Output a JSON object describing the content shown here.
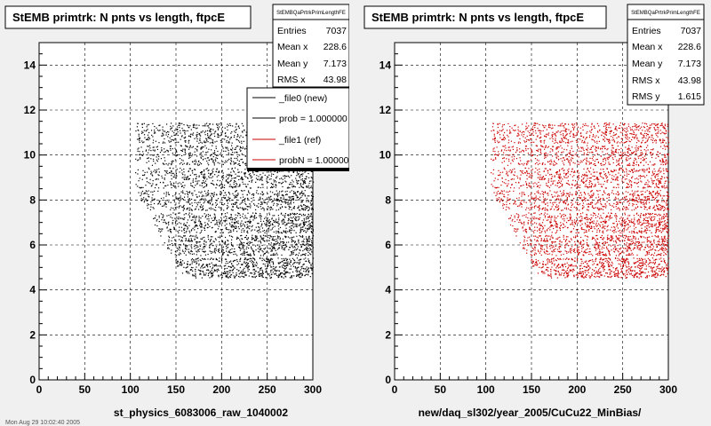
{
  "canvas_bg": "#f0f0f0",
  "footer_text": "Mon Aug 29 10:02:40 2005",
  "chart_data": [
    {
      "type": "scatter",
      "title": "StEMB primtrk: N pnts vs length, ftpcE",
      "xlabel": "st_physics_6083006_raw_1040002",
      "ylabel": "",
      "xlim": [
        0,
        300
      ],
      "ylim": [
        0,
        15
      ],
      "xticks": [
        0,
        50,
        100,
        150,
        200,
        250,
        300
      ],
      "yticks": [
        0,
        2,
        4,
        6,
        8,
        10,
        12,
        14
      ],
      "grid": true,
      "point_color": "#000000",
      "point_region": {
        "x_range": [
          105,
          300
        ],
        "y_range": [
          5,
          11
        ],
        "points": 7037
      },
      "stats": {
        "name": "StEMBQaPrtrkPrimLengthFE",
        "rows": [
          {
            "label": "Entries",
            "value": "7037"
          },
          {
            "label": "Mean x",
            "value": "228.6"
          },
          {
            "label": "Mean y",
            "value": "7.173"
          },
          {
            "label": "RMS x",
            "value": "43.98"
          }
        ]
      },
      "legend": {
        "placement": "top-right",
        "entries": [
          {
            "label": "_file0 (new)",
            "color": "#000000"
          },
          {
            "label": "prob = 1.000000",
            "color": "#000000"
          },
          {
            "label": "_file1 (ref)",
            "color": "#cc0000"
          },
          {
            "label": "probN = 1.000000",
            "color": "#cc0000"
          }
        ]
      }
    },
    {
      "type": "scatter",
      "title": "StEMB primtrk: N pnts vs length, ftpcE",
      "xlabel": "new/daq_sl302/year_2005/CuCu22_MinBias/",
      "ylabel": "",
      "xlim": [
        0,
        300
      ],
      "ylim": [
        0,
        15
      ],
      "xticks": [
        0,
        50,
        100,
        150,
        200,
        250,
        300
      ],
      "yticks": [
        0,
        2,
        4,
        6,
        8,
        10,
        12,
        14
      ],
      "grid": true,
      "point_color": "#cc0000",
      "point_region": {
        "x_range": [
          105,
          300
        ],
        "y_range": [
          5,
          11
        ],
        "points": 7037
      },
      "stats": {
        "name": "StEMBQaPrtrkPrimLengthFE",
        "rows": [
          {
            "label": "Entries",
            "value": "7037"
          },
          {
            "label": "Mean x",
            "value": "228.6"
          },
          {
            "label": "Mean y",
            "value": "7.173"
          },
          {
            "label": "RMS x",
            "value": "43.98"
          },
          {
            "label": "RMS y",
            "value": "1.615"
          }
        ]
      }
    }
  ]
}
